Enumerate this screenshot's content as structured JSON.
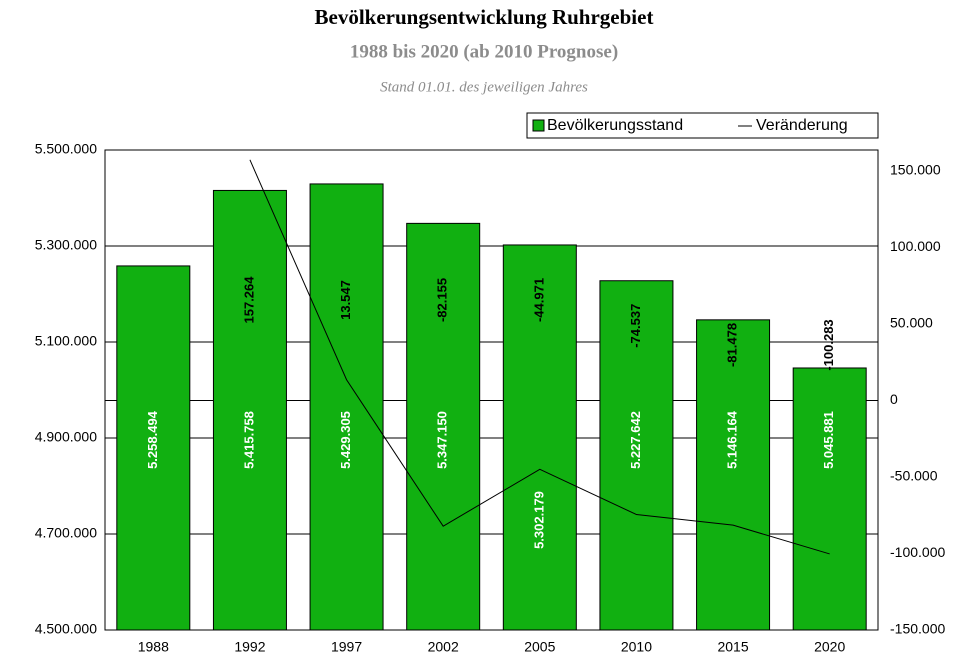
{
  "chart_data": {
    "type": "bar",
    "title": "Bevölkerungsentwicklung Ruhrgebiet",
    "subtitle": "1988 bis 2020 (ab 2010 Prognose)",
    "note": "Stand 01.01. des jeweiligen Jahres",
    "categories": [
      "1988",
      "1992",
      "1997",
      "2002",
      "2005",
      "2010",
      "2015",
      "2020"
    ],
    "series": [
      {
        "name": "Bevölkerungsstand",
        "type": "bar",
        "color": "#11b011",
        "values": [
          5258494,
          5415758,
          5429305,
          5347150,
          5302179,
          5227642,
          5146164,
          5045881
        ],
        "value_labels": [
          "5.258.494",
          "5.415.758",
          "5.429.305",
          "5.347.150",
          "5.302.179",
          "5.227.642",
          "5.146.164",
          "5.045.881"
        ]
      },
      {
        "name": "Veränderung",
        "type": "line",
        "axis": "y2",
        "color": "#000000",
        "values": [
          null,
          157264,
          13547,
          -82155,
          -44971,
          -74537,
          -81478,
          -100283
        ],
        "value_labels": [
          null,
          "157.264",
          "13.547",
          "-82.155",
          "-44.971",
          "-74.537",
          "-81.478",
          "-100.283"
        ]
      }
    ],
    "ylim": [
      4500000,
      5500000
    ],
    "yticks": [
      {
        "value": 4500000,
        "label": "4.500.000"
      },
      {
        "value": 4700000,
        "label": "4.700.000"
      },
      {
        "value": 4900000,
        "label": "4.900.000"
      },
      {
        "value": 5100000,
        "label": "5.100.000"
      },
      {
        "value": 5300000,
        "label": "5.300.000"
      },
      {
        "value": 5500000,
        "label": "5.500.000"
      }
    ],
    "y2lim": [
      -150000,
      163700
    ],
    "y2ticks": [
      {
        "value": -150000,
        "label": "-150.000"
      },
      {
        "value": -100000,
        "label": "-100.000"
      },
      {
        "value": -50000,
        "label": "-50.000"
      },
      0,
      {
        "value": 50000,
        "label": "50.000"
      },
      {
        "value": 100000,
        "label": "100.000"
      },
      {
        "value": 150000,
        "label": "150.000"
      }
    ],
    "grid": true,
    "legend": "top-right"
  }
}
